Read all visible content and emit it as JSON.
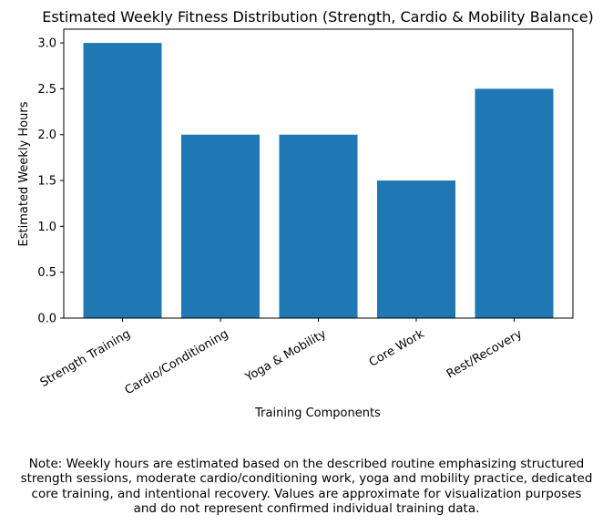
{
  "chart_data": {
    "type": "bar",
    "title": "Estimated Weekly Fitness Distribution (Strength, Cardio & Mobility Balance)",
    "xlabel": "Training Components",
    "ylabel": "Estimated Weekly Hours",
    "categories": [
      "Strength Training",
      "Cardio/Conditioning",
      "Yoga & Mobility",
      "Core Work",
      "Rest/Recovery"
    ],
    "values": [
      3.0,
      2.0,
      2.0,
      1.5,
      2.5
    ],
    "ylim": [
      0,
      3.15
    ],
    "yticks": [
      "0.0",
      "0.5",
      "1.0",
      "1.5",
      "2.0",
      "2.5",
      "3.0"
    ],
    "bar_color": "#1f77b4",
    "grid": false,
    "x_tick_rotation_deg": 30
  },
  "note": "Note: Weekly hours are estimated based on the described routine emphasizing structured\nstrength sessions, moderate cardio/conditioning work, yoga and mobility practice, dedicated\ncore training, and intentional recovery. Values are approximate for visualization purposes\nand do not represent confirmed individual training data."
}
